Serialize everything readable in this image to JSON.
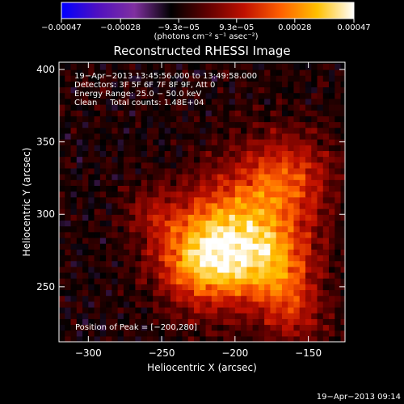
{
  "chart_data": {
    "type": "heatmap",
    "title": "Reconstructed RHESSI Image",
    "xlabel": "Heliocentric X (arcsec)",
    "ylabel": "Heliocentric Y (arcsec)",
    "xlim": [
      -320,
      -125
    ],
    "ylim": [
      212,
      405
    ],
    "x_ticks": [
      -300,
      -250,
      -200,
      -150
    ],
    "x_tick_labels": [
      "−300",
      "−250",
      "−200",
      "−150"
    ],
    "y_ticks": [
      250,
      300,
      350,
      400
    ],
    "y_tick_labels": [
      "250",
      "300",
      "350",
      "400"
    ],
    "colorbar": {
      "range": [
        -0.00047,
        0.00047
      ],
      "ticks": [
        -0.00047,
        -0.00028,
        -9.3e-05,
        9.3e-05,
        0.00028,
        0.00047
      ],
      "tick_labels": [
        "−0.00047",
        "−0.00028",
        "−9.3e−05",
        "9.3e−05",
        "0.00028",
        "0.00047"
      ],
      "units": "(photons cm⁻² s⁻¹ asec⁻²)",
      "colormap": [
        "#0000ff",
        "#5010c0",
        "#8030a0",
        "#000000",
        "#600000",
        "#c01000",
        "#ff6000",
        "#ffc000",
        "#ffffff"
      ]
    },
    "annotations": [
      "19−Apr−2013 13:45:56.000 to 13:49:58.000",
      "Detectors: 3F 5F 6F 7F 8F 9F, Att 0",
      "Energy Range: 25.0 − 50.0 keV",
      "Clean     Total counts: 1.48E+04"
    ],
    "peak_label": "Position of Peak = [−200,280]",
    "peak": [
      -200,
      280
    ],
    "sources": [
      {
        "x": -200,
        "y": 283,
        "sigma": 28,
        "amp": 1.0
      },
      {
        "x": -165,
        "y": 325,
        "sigma": 22,
        "amp": 0.55
      },
      {
        "x": -225,
        "y": 265,
        "sigma": 20,
        "amp": 0.55
      },
      {
        "x": -170,
        "y": 262,
        "sigma": 18,
        "amp": 0.45
      },
      {
        "x": -160,
        "y": 230,
        "sigma": 16,
        "amp": 0.35
      },
      {
        "x": -255,
        "y": 300,
        "sigma": 14,
        "amp": 0.25
      }
    ]
  },
  "footer_timestamp": "19−Apr−2013 09:14"
}
